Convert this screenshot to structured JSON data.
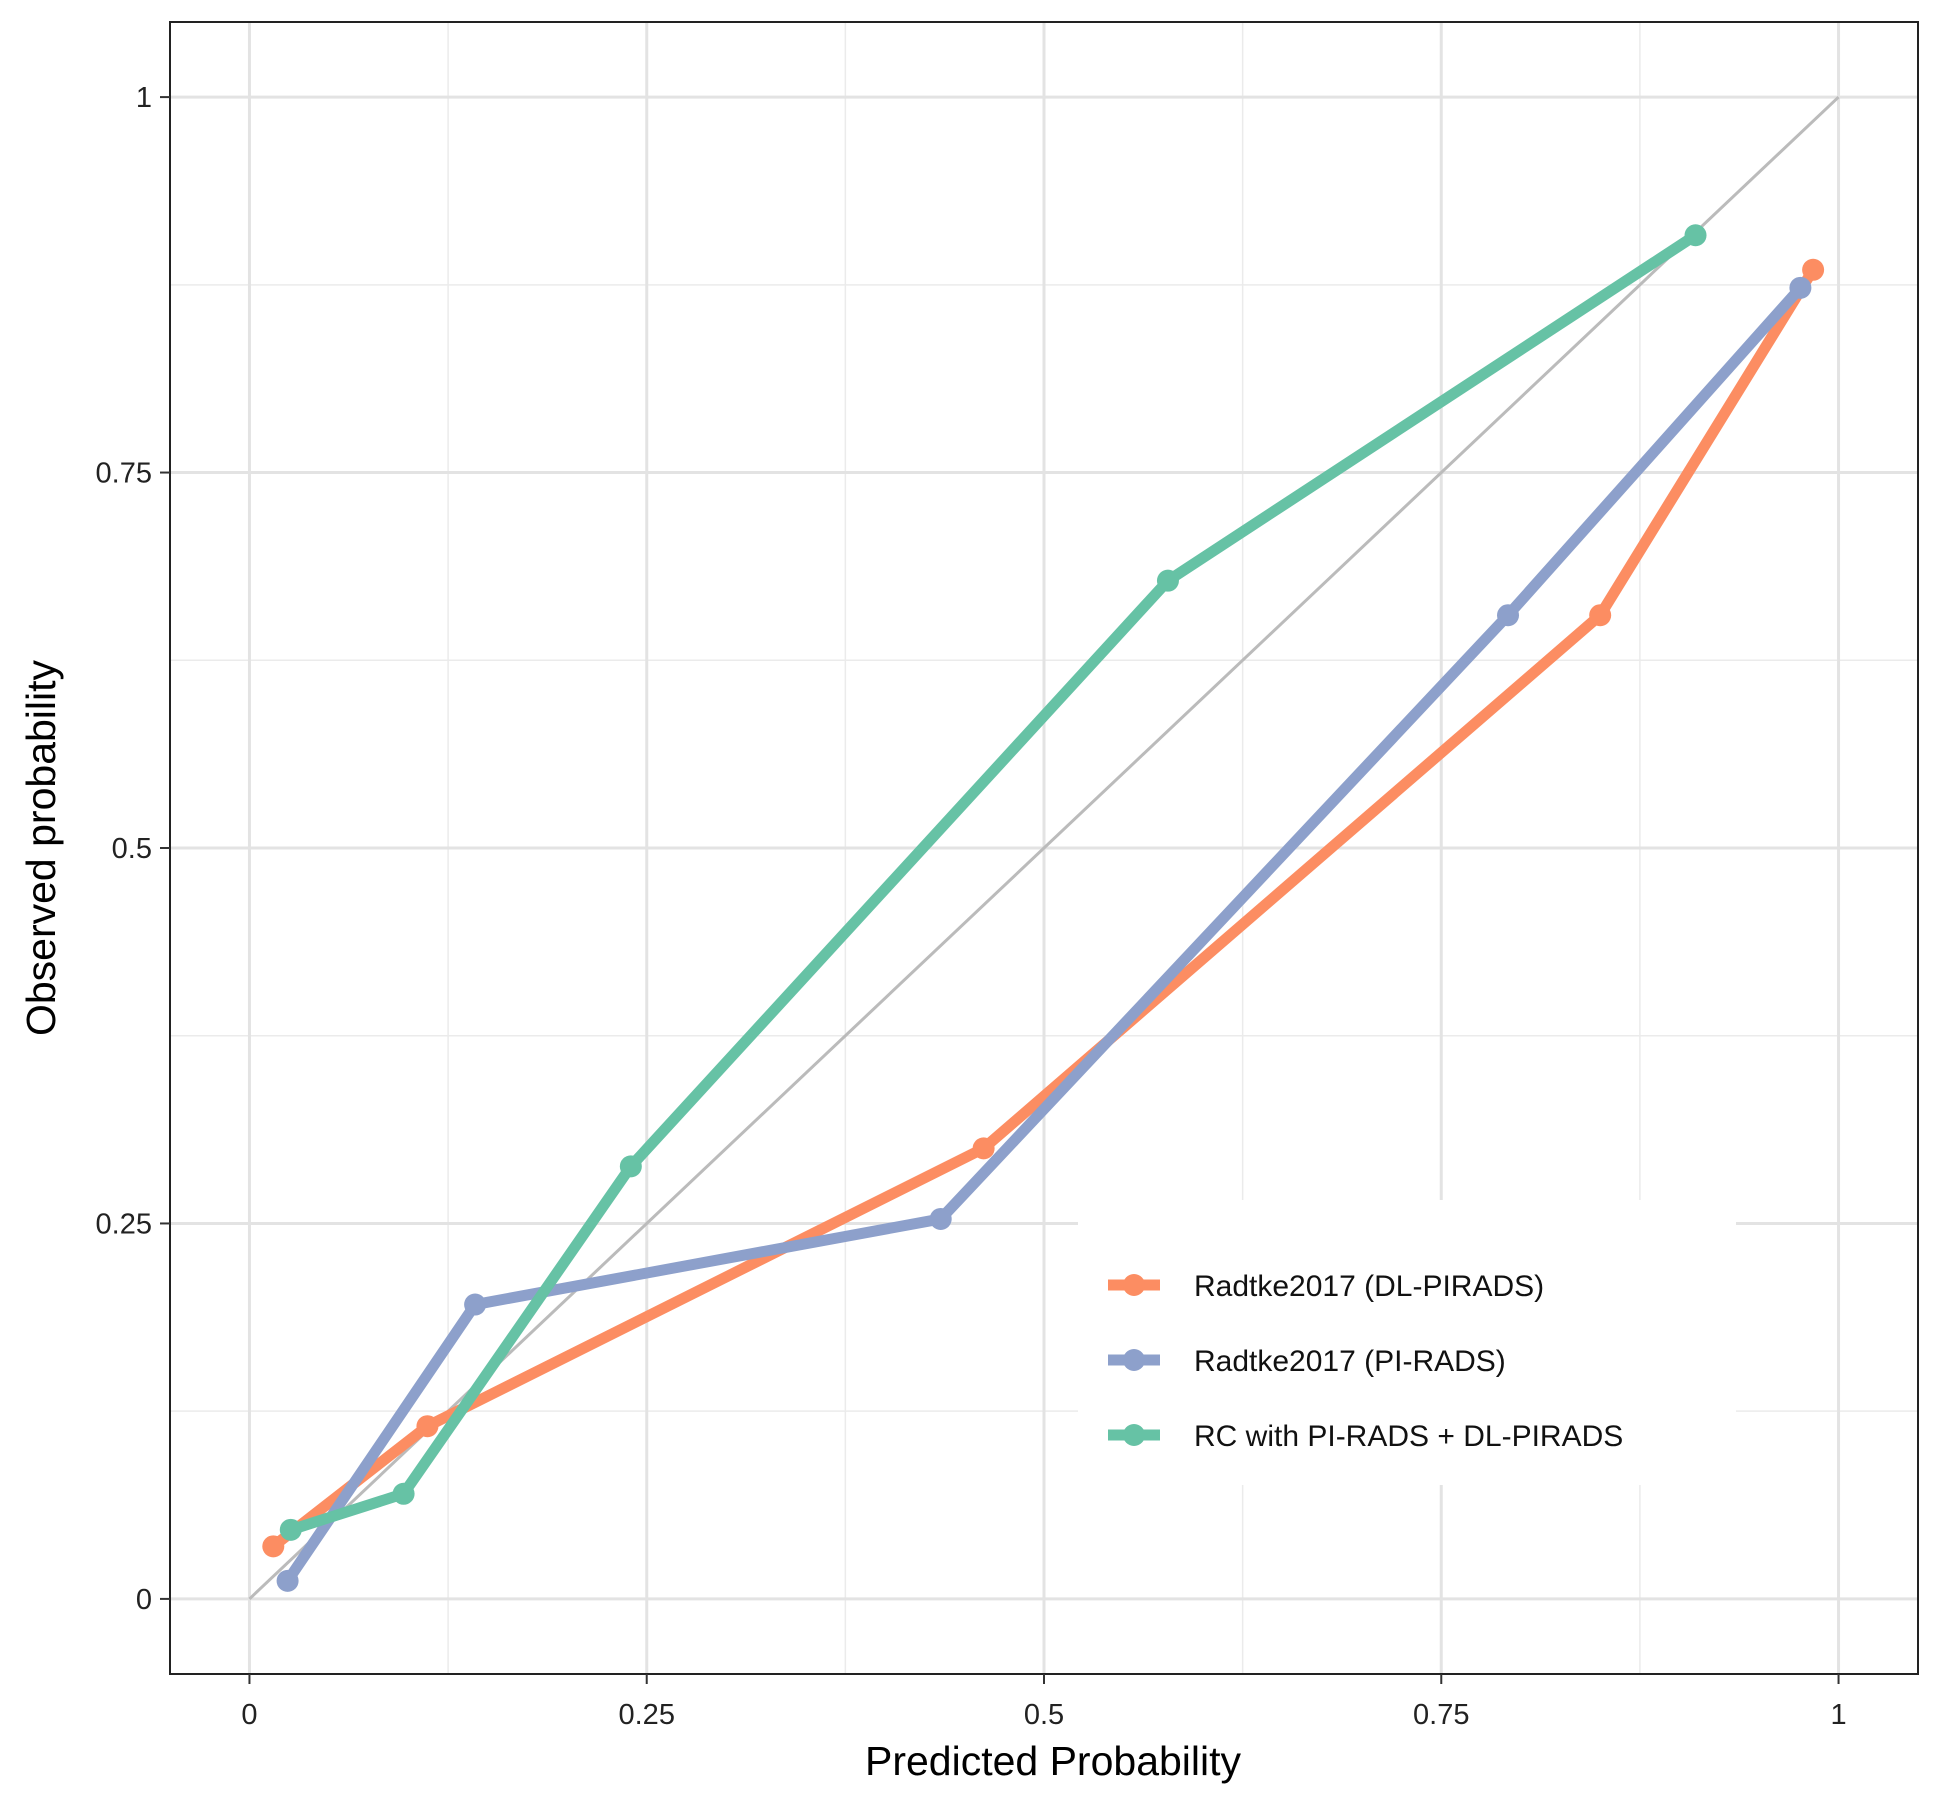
{
  "chart_data": {
    "type": "line",
    "title": "",
    "xlabel": "Predicted Probability",
    "ylabel": "Observed probability",
    "xlim": [
      -0.05,
      1.05
    ],
    "ylim": [
      -0.05,
      1.05
    ],
    "x_ticks": [
      0,
      0.25,
      0.5,
      0.75,
      1
    ],
    "x_tick_labels": [
      "0",
      "0.25",
      "0.5",
      "0.75",
      "1"
    ],
    "y_ticks": [
      0,
      0.25,
      0.5,
      0.75,
      1
    ],
    "y_tick_labels": [
      "0",
      "0.25",
      "0.5",
      "0.75",
      "1"
    ],
    "minor_grid": [
      0.125,
      0.375,
      0.625,
      0.875
    ],
    "grid": true,
    "reference_line": {
      "x": [
        0,
        1
      ],
      "y": [
        0,
        1
      ],
      "color": "#bbbbbb"
    },
    "legend_position": "bottom-right",
    "series": [
      {
        "name": "Radtke2017 (DL-PIRADS)",
        "color": "#fc8d62",
        "x": [
          0.015,
          0.112,
          0.462,
          0.85,
          0.984
        ],
        "y": [
          0.035,
          0.115,
          0.3,
          0.655,
          0.885
        ]
      },
      {
        "name": "Radtke2017 (PI-RADS)",
        "color": "#8da0cb",
        "x": [
          0.024,
          0.142,
          0.435,
          0.792,
          0.976
        ],
        "y": [
          0.012,
          0.196,
          0.253,
          0.655,
          0.873
        ]
      },
      {
        "name": "RC with PI-RADS + DL-PIRADS",
        "color": "#66c2a5",
        "x": [
          0.026,
          0.097,
          0.24,
          0.578,
          0.91
        ],
        "y": [
          0.046,
          0.07,
          0.288,
          0.678,
          0.908
        ]
      }
    ]
  }
}
